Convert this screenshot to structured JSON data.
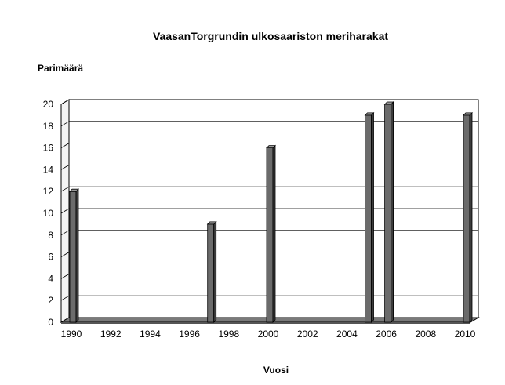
{
  "chart_data": {
    "type": "bar",
    "title": "VaasanTorgrundin ulkosaariston meriharakat",
    "ylabel": "Parimäärä",
    "xlabel": "Vuosi",
    "ylim": [
      0,
      20
    ],
    "yticks": [
      0,
      2,
      4,
      6,
      8,
      10,
      12,
      14,
      16,
      18,
      20
    ],
    "xlim": [
      1990,
      2010
    ],
    "xticks": [
      1990,
      1992,
      1994,
      1996,
      1998,
      2000,
      2002,
      2004,
      2006,
      2008,
      2010
    ],
    "x": [
      1990,
      1997,
      2000,
      2005,
      2006,
      2010
    ],
    "values": [
      12,
      9,
      16,
      19,
      20,
      19
    ],
    "grid": true,
    "colors": {
      "bar": "#6b6b6b",
      "bar_top": "#9a9a9a",
      "bar_side": "#3c3c3c",
      "floor": "#7a7a7a",
      "wall": "#ffffff"
    }
  }
}
